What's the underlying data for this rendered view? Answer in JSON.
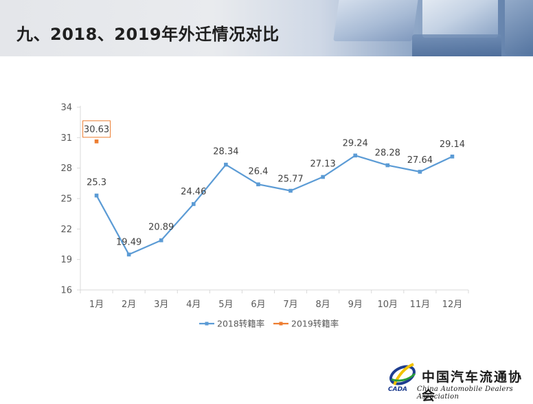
{
  "header": {
    "title": "九、2018、2019年外迁情况对比"
  },
  "chart_data": {
    "type": "line",
    "categories": [
      "1月",
      "2月",
      "3月",
      "4月",
      "5月",
      "6月",
      "7月",
      "8月",
      "9月",
      "10月",
      "11月",
      "12月"
    ],
    "series": [
      {
        "name": "2018转籍率",
        "color": "#5b9bd5",
        "values": [
          25.3,
          19.49,
          20.89,
          24.46,
          28.34,
          26.4,
          25.77,
          27.13,
          29.24,
          28.28,
          27.64,
          29.14
        ]
      },
      {
        "name": "2019转籍率",
        "color": "#ed7d31",
        "values": [
          30.63,
          null,
          null,
          null,
          null,
          null,
          null,
          null,
          null,
          null,
          null,
          null
        ]
      }
    ],
    "yticks": [
      16,
      19,
      22,
      25,
      28,
      31,
      34
    ],
    "ylim": [
      16,
      34
    ],
    "legend": "bottom",
    "grid": false
  },
  "logo": {
    "name": "中国汽车流通协会",
    "english": "China Automobile Dealers Association",
    "abbr": "CADA"
  }
}
